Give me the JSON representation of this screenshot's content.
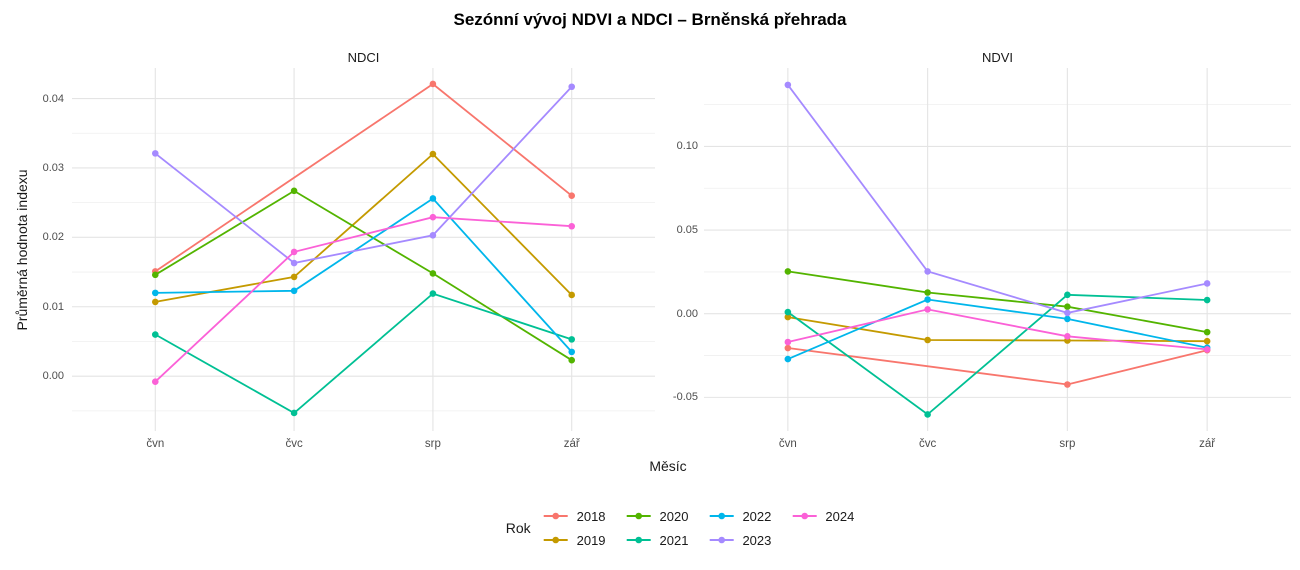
{
  "title": "Sezónní vývoj NDVI a NDCI – Brněnská přehrada",
  "axes": {
    "x_label": "Měsíc",
    "y_label": "Průměrná hodnota indexu"
  },
  "legend": {
    "title": "Rok",
    "entries": [
      {
        "label": "2018",
        "color": "#F8766D"
      },
      {
        "label": "2019",
        "color": "#C49A00"
      },
      {
        "label": "2020",
        "color": "#53B400"
      },
      {
        "label": "2021",
        "color": "#00C094"
      },
      {
        "label": "2022",
        "color": "#00B6EB"
      },
      {
        "label": "2023",
        "color": "#A58AFF"
      },
      {
        "label": "2024",
        "color": "#FB61D7"
      }
    ]
  },
  "colors": {
    "grid_major": "#E4E4E4",
    "grid_minor": "#EFEFEF",
    "tick_text": "#4d4d4d",
    "text": "#1a1a1a"
  },
  "chart_data": [
    {
      "type": "line",
      "facet": "NDCI",
      "categories": [
        "čvn",
        "čvc",
        "srp",
        "zář"
      ],
      "xlabel": "Měsíc",
      "ylabel": "Průměrná hodnota indexu",
      "ylim": [
        -0.0079,
        0.0444
      ],
      "yticks": [
        {
          "value": 0.0,
          "label": "0.00"
        },
        {
          "value": 0.01,
          "label": "0.01"
        },
        {
          "value": 0.02,
          "label": "0.02"
        },
        {
          "value": 0.03,
          "label": "0.03"
        },
        {
          "value": 0.04,
          "label": "0.04"
        }
      ],
      "minor_ticks": [
        -0.005,
        0.005,
        0.015,
        0.025,
        0.035
      ],
      "grid": true,
      "series": [
        {
          "name": "2018",
          "color": "#F8766D",
          "values": [
            0.0151,
            null,
            0.0421,
            0.026
          ]
        },
        {
          "name": "2019",
          "color": "#C49A00",
          "values": [
            0.0107,
            0.0143,
            0.032,
            0.0117
          ]
        },
        {
          "name": "2020",
          "color": "#53B400",
          "values": [
            0.0146,
            0.0267,
            0.0148,
            0.0023
          ]
        },
        {
          "name": "2021",
          "color": "#00C094",
          "values": [
            0.006,
            -0.0053,
            0.0119,
            0.0053
          ]
        },
        {
          "name": "2022",
          "color": "#00B6EB",
          "values": [
            0.012,
            0.0123,
            0.0256,
            0.0035
          ]
        },
        {
          "name": "2023",
          "color": "#A58AFF",
          "values": [
            0.0321,
            0.0163,
            0.0203,
            0.0417
          ]
        },
        {
          "name": "2024",
          "color": "#FB61D7",
          "values": [
            -0.0008,
            0.0179,
            0.0229,
            0.0216
          ]
        }
      ]
    },
    {
      "type": "line",
      "facet": "NDVI",
      "categories": [
        "čvn",
        "čvc",
        "srp",
        "zář"
      ],
      "xlabel": "Měsíc",
      "ylabel": "Průměrná hodnota indexu",
      "ylim": [
        -0.0701,
        0.1469
      ],
      "yticks": [
        {
          "value": -0.05,
          "label": "-0.05"
        },
        {
          "value": 0.0,
          "label": "0.00"
        },
        {
          "value": 0.05,
          "label": "0.05"
        },
        {
          "value": 0.1,
          "label": "0.10"
        }
      ],
      "minor_ticks": [
        -0.025,
        0.025,
        0.075,
        0.125
      ],
      "grid": true,
      "series": [
        {
          "name": "2018",
          "color": "#F8766D",
          "values": [
            -0.0205,
            null,
            -0.0423,
            -0.0218
          ]
        },
        {
          "name": "2019",
          "color": "#C49A00",
          "values": [
            -0.002,
            -0.0157,
            -0.016,
            -0.0164
          ]
        },
        {
          "name": "2020",
          "color": "#53B400",
          "values": [
            0.0253,
            0.0127,
            0.0042,
            -0.011
          ]
        },
        {
          "name": "2021",
          "color": "#00C094",
          "values": [
            0.001,
            -0.0602,
            0.0113,
            0.0082
          ]
        },
        {
          "name": "2022",
          "color": "#00B6EB",
          "values": [
            -0.0271,
            0.0085,
            -0.0031,
            -0.0203
          ]
        },
        {
          "name": "2023",
          "color": "#A58AFF",
          "values": [
            0.1368,
            0.0253,
            0.0005,
            0.0181
          ]
        },
        {
          "name": "2024",
          "color": "#FB61D7",
          "values": [
            -0.0169,
            0.0026,
            -0.0135,
            -0.0213
          ]
        }
      ]
    }
  ]
}
